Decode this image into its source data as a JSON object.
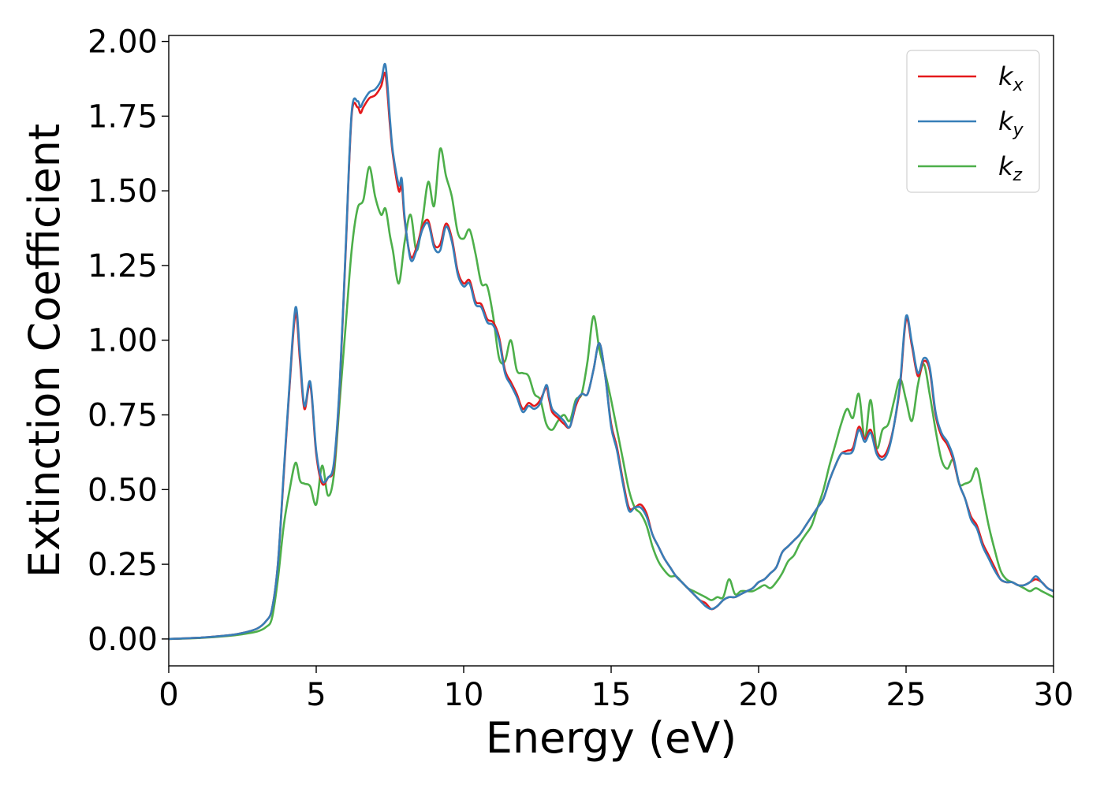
{
  "chart_data": {
    "type": "line",
    "title": "",
    "xlabel": "Energy (eV)",
    "ylabel": "Extinction Coefficient",
    "xlim": [
      0,
      30
    ],
    "ylim": [
      -0.09,
      2.02
    ],
    "xticks": [
      0,
      5,
      10,
      15,
      20,
      25,
      30
    ],
    "xtick_labels": [
      "0",
      "5",
      "10",
      "15",
      "20",
      "25",
      "30"
    ],
    "yticks": [
      0.0,
      0.25,
      0.5,
      0.75,
      1.0,
      1.25,
      1.5,
      1.75,
      2.0
    ],
    "ytick_labels": [
      "0.00",
      "0.25",
      "0.50",
      "0.75",
      "1.00",
      "1.25",
      "1.50",
      "1.75",
      "2.00"
    ],
    "grid": false,
    "legend_position": "top-right",
    "series": [
      {
        "name": "k_x",
        "label_base": "k",
        "label_sub": "x",
        "color": "#e41a1c",
        "x": [
          0,
          1,
          2,
          2.5,
          3.0,
          3.3,
          3.5,
          3.7,
          3.9,
          4.1,
          4.3,
          4.45,
          4.6,
          4.8,
          5.0,
          5.2,
          5.4,
          5.6,
          5.8,
          6.0,
          6.2,
          6.4,
          6.5,
          6.6,
          6.8,
          7.0,
          7.2,
          7.35,
          7.5,
          7.6,
          7.8,
          7.9,
          8.0,
          8.2,
          8.4,
          8.6,
          8.8,
          9.0,
          9.2,
          9.4,
          9.6,
          9.8,
          10.0,
          10.2,
          10.4,
          10.6,
          10.8,
          11.0,
          11.2,
          11.4,
          11.6,
          11.8,
          12.0,
          12.2,
          12.4,
          12.6,
          12.8,
          12.9,
          13.0,
          13.2,
          13.4,
          13.6,
          13.8,
          14.0,
          14.2,
          14.4,
          14.6,
          14.8,
          15.0,
          15.2,
          15.4,
          15.6,
          15.8,
          16.0,
          16.2,
          16.4,
          16.6,
          16.8,
          17.0,
          17.2,
          17.4,
          17.6,
          17.8,
          18.0,
          18.2,
          18.4,
          18.6,
          18.8,
          19.0,
          19.2,
          19.4,
          19.6,
          19.8,
          20.0,
          20.2,
          20.4,
          20.6,
          20.8,
          21.0,
          21.2,
          21.4,
          21.6,
          21.8,
          22.0,
          22.2,
          22.4,
          22.6,
          22.8,
          23.0,
          23.2,
          23.4,
          23.6,
          23.8,
          24.0,
          24.2,
          24.4,
          24.6,
          24.8,
          25.0,
          25.2,
          25.4,
          25.6,
          25.8,
          26.0,
          26.2,
          26.4,
          26.6,
          26.8,
          27.0,
          27.2,
          27.4,
          27.6,
          27.8,
          28.0,
          28.2,
          28.4,
          28.6,
          28.8,
          29.0,
          29.2,
          29.4,
          29.6,
          29.8,
          30.0
        ],
        "y": [
          0.0,
          0.004,
          0.012,
          0.02,
          0.035,
          0.06,
          0.1,
          0.25,
          0.55,
          0.85,
          1.09,
          0.93,
          0.77,
          0.85,
          0.62,
          0.52,
          0.54,
          0.58,
          0.85,
          1.3,
          1.75,
          1.78,
          1.76,
          1.78,
          1.81,
          1.82,
          1.85,
          1.89,
          1.72,
          1.62,
          1.5,
          1.52,
          1.4,
          1.28,
          1.31,
          1.38,
          1.4,
          1.32,
          1.32,
          1.39,
          1.34,
          1.23,
          1.19,
          1.2,
          1.13,
          1.12,
          1.07,
          1.06,
          1.01,
          0.9,
          0.86,
          0.82,
          0.77,
          0.79,
          0.78,
          0.8,
          0.84,
          0.8,
          0.76,
          0.74,
          0.72,
          0.71,
          0.78,
          0.82,
          0.82,
          0.9,
          0.99,
          0.88,
          0.72,
          0.64,
          0.53,
          0.44,
          0.44,
          0.45,
          0.42,
          0.35,
          0.31,
          0.27,
          0.24,
          0.21,
          0.19,
          0.17,
          0.15,
          0.13,
          0.12,
          0.1,
          0.11,
          0.13,
          0.14,
          0.14,
          0.15,
          0.16,
          0.17,
          0.19,
          0.2,
          0.22,
          0.24,
          0.29,
          0.31,
          0.33,
          0.35,
          0.38,
          0.41,
          0.44,
          0.47,
          0.53,
          0.58,
          0.62,
          0.63,
          0.64,
          0.71,
          0.67,
          0.7,
          0.63,
          0.61,
          0.64,
          0.72,
          0.85,
          1.07,
          0.98,
          0.88,
          0.93,
          0.9,
          0.75,
          0.68,
          0.65,
          0.6,
          0.52,
          0.47,
          0.41,
          0.38,
          0.32,
          0.28,
          0.24,
          0.2,
          0.19,
          0.19,
          0.18,
          0.18,
          0.19,
          0.2,
          0.19,
          0.17,
          0.16
        ]
      },
      {
        "name": "k_y",
        "label_base": "k",
        "label_sub": "y",
        "color": "#377eb8",
        "x": [
          0,
          1,
          2,
          2.5,
          3.0,
          3.3,
          3.5,
          3.7,
          3.9,
          4.1,
          4.3,
          4.45,
          4.6,
          4.8,
          5.0,
          5.2,
          5.4,
          5.6,
          5.8,
          6.0,
          6.2,
          6.4,
          6.5,
          6.6,
          6.8,
          7.0,
          7.2,
          7.35,
          7.5,
          7.6,
          7.8,
          7.9,
          8.0,
          8.2,
          8.4,
          8.6,
          8.8,
          9.0,
          9.2,
          9.4,
          9.6,
          9.8,
          10.0,
          10.2,
          10.4,
          10.6,
          10.8,
          11.0,
          11.2,
          11.4,
          11.6,
          11.8,
          12.0,
          12.2,
          12.4,
          12.6,
          12.8,
          12.9,
          13.0,
          13.2,
          13.4,
          13.6,
          13.8,
          14.0,
          14.2,
          14.4,
          14.6,
          14.8,
          15.0,
          15.2,
          15.4,
          15.6,
          15.8,
          16.0,
          16.2,
          16.4,
          16.6,
          16.8,
          17.0,
          17.2,
          17.4,
          17.6,
          17.8,
          18.0,
          18.2,
          18.4,
          18.6,
          18.8,
          19.0,
          19.2,
          19.4,
          19.6,
          19.8,
          20.0,
          20.2,
          20.4,
          20.6,
          20.8,
          21.0,
          21.2,
          21.4,
          21.6,
          21.8,
          22.0,
          22.2,
          22.4,
          22.6,
          22.8,
          23.0,
          23.2,
          23.4,
          23.6,
          23.8,
          24.0,
          24.2,
          24.4,
          24.6,
          24.8,
          25.0,
          25.2,
          25.4,
          25.6,
          25.8,
          26.0,
          26.2,
          26.4,
          26.6,
          26.8,
          27.0,
          27.2,
          27.4,
          27.6,
          27.8,
          28.0,
          28.2,
          28.4,
          28.6,
          28.8,
          29.0,
          29.2,
          29.4,
          29.6,
          29.8,
          30.0
        ],
        "y": [
          0.0,
          0.004,
          0.012,
          0.02,
          0.035,
          0.06,
          0.1,
          0.25,
          0.56,
          0.86,
          1.11,
          0.95,
          0.78,
          0.86,
          0.63,
          0.53,
          0.54,
          0.59,
          0.86,
          1.31,
          1.76,
          1.8,
          1.78,
          1.8,
          1.83,
          1.84,
          1.87,
          1.92,
          1.74,
          1.63,
          1.52,
          1.54,
          1.41,
          1.27,
          1.3,
          1.37,
          1.39,
          1.31,
          1.3,
          1.38,
          1.33,
          1.22,
          1.18,
          1.19,
          1.12,
          1.11,
          1.06,
          1.05,
          1.0,
          0.89,
          0.85,
          0.81,
          0.76,
          0.78,
          0.77,
          0.79,
          0.85,
          0.81,
          0.77,
          0.75,
          0.73,
          0.71,
          0.79,
          0.82,
          0.82,
          0.9,
          0.99,
          0.88,
          0.71,
          0.63,
          0.52,
          0.43,
          0.44,
          0.44,
          0.41,
          0.35,
          0.31,
          0.27,
          0.24,
          0.21,
          0.19,
          0.17,
          0.15,
          0.13,
          0.11,
          0.1,
          0.11,
          0.13,
          0.14,
          0.14,
          0.15,
          0.16,
          0.17,
          0.19,
          0.2,
          0.22,
          0.24,
          0.29,
          0.31,
          0.33,
          0.35,
          0.38,
          0.41,
          0.44,
          0.47,
          0.53,
          0.58,
          0.62,
          0.62,
          0.63,
          0.7,
          0.66,
          0.69,
          0.62,
          0.6,
          0.63,
          0.72,
          0.86,
          1.08,
          0.99,
          0.89,
          0.94,
          0.91,
          0.76,
          0.69,
          0.66,
          0.61,
          0.52,
          0.47,
          0.4,
          0.37,
          0.31,
          0.27,
          0.23,
          0.2,
          0.19,
          0.19,
          0.18,
          0.18,
          0.19,
          0.21,
          0.19,
          0.17,
          0.16
        ]
      },
      {
        "name": "k_z",
        "label_base": "k",
        "label_sub": "z",
        "color": "#4daf4a",
        "x": [
          0,
          1,
          2,
          2.5,
          3.0,
          3.3,
          3.5,
          3.7,
          3.9,
          4.1,
          4.3,
          4.45,
          4.6,
          4.8,
          5.0,
          5.2,
          5.4,
          5.6,
          5.8,
          6.0,
          6.2,
          6.4,
          6.6,
          6.8,
          7.0,
          7.2,
          7.35,
          7.5,
          7.6,
          7.8,
          8.0,
          8.2,
          8.4,
          8.6,
          8.8,
          9.0,
          9.2,
          9.4,
          9.6,
          9.8,
          10.0,
          10.2,
          10.4,
          10.6,
          10.8,
          11.0,
          11.2,
          11.4,
          11.6,
          11.8,
          12.0,
          12.2,
          12.4,
          12.6,
          12.8,
          13.0,
          13.2,
          13.4,
          13.6,
          13.8,
          14.0,
          14.2,
          14.4,
          14.6,
          14.8,
          15.0,
          15.2,
          15.4,
          15.6,
          15.8,
          16.0,
          16.2,
          16.4,
          16.6,
          16.8,
          17.0,
          17.2,
          17.4,
          17.6,
          17.8,
          18.0,
          18.2,
          18.4,
          18.6,
          18.8,
          19.0,
          19.2,
          19.4,
          19.6,
          19.8,
          20.0,
          20.2,
          20.4,
          20.6,
          20.8,
          21.0,
          21.2,
          21.4,
          21.6,
          21.8,
          22.0,
          22.2,
          22.4,
          22.6,
          22.8,
          23.0,
          23.2,
          23.4,
          23.6,
          23.8,
          24.0,
          24.2,
          24.4,
          24.6,
          24.8,
          25.0,
          25.2,
          25.4,
          25.6,
          25.8,
          26.0,
          26.2,
          26.4,
          26.6,
          26.8,
          27.0,
          27.2,
          27.4,
          27.6,
          27.8,
          28.0,
          28.2,
          28.4,
          28.6,
          28.8,
          29.0,
          29.2,
          29.4,
          29.6,
          29.8,
          30.0
        ],
        "y": [
          0.0,
          0.003,
          0.01,
          0.016,
          0.025,
          0.04,
          0.07,
          0.2,
          0.38,
          0.5,
          0.59,
          0.53,
          0.52,
          0.51,
          0.45,
          0.58,
          0.48,
          0.55,
          0.8,
          1.05,
          1.3,
          1.44,
          1.47,
          1.58,
          1.48,
          1.42,
          1.44,
          1.35,
          1.3,
          1.19,
          1.33,
          1.42,
          1.3,
          1.4,
          1.53,
          1.45,
          1.64,
          1.55,
          1.48,
          1.36,
          1.34,
          1.37,
          1.29,
          1.19,
          1.18,
          1.08,
          0.94,
          0.93,
          1.0,
          0.9,
          0.89,
          0.88,
          0.82,
          0.8,
          0.72,
          0.7,
          0.73,
          0.75,
          0.73,
          0.8,
          0.82,
          0.93,
          1.08,
          0.97,
          0.89,
          0.8,
          0.7,
          0.6,
          0.5,
          0.44,
          0.42,
          0.38,
          0.31,
          0.26,
          0.23,
          0.21,
          0.21,
          0.19,
          0.17,
          0.16,
          0.15,
          0.14,
          0.13,
          0.14,
          0.14,
          0.2,
          0.15,
          0.16,
          0.16,
          0.16,
          0.17,
          0.18,
          0.17,
          0.19,
          0.22,
          0.26,
          0.28,
          0.32,
          0.35,
          0.38,
          0.44,
          0.5,
          0.58,
          0.65,
          0.72,
          0.77,
          0.74,
          0.82,
          0.67,
          0.8,
          0.64,
          0.7,
          0.72,
          0.8,
          0.87,
          0.8,
          0.73,
          0.85,
          0.92,
          0.82,
          0.7,
          0.6,
          0.57,
          0.6,
          0.52,
          0.52,
          0.53,
          0.57,
          0.48,
          0.38,
          0.3,
          0.23,
          0.2,
          0.19,
          0.18,
          0.17,
          0.16,
          0.17,
          0.16,
          0.15,
          0.14
        ]
      }
    ]
  }
}
